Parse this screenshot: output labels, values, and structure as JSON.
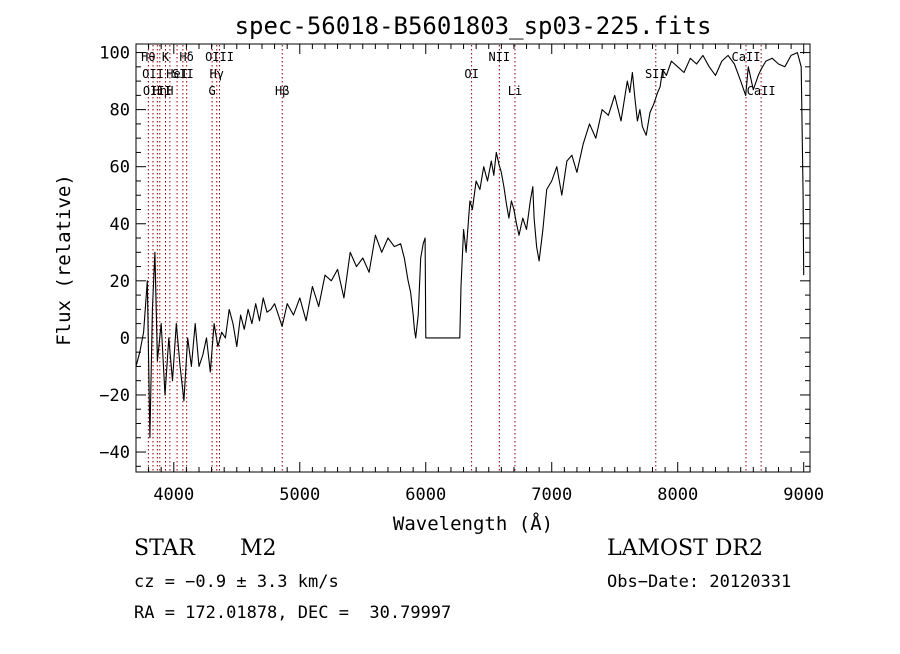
{
  "chart_data": {
    "type": "line",
    "title": "spec-56018-B5601803_sp03-225.fits",
    "xlabel": "Wavelength (Å)",
    "ylabel": "Flux (relative)",
    "xlim": [
      3700,
      9050
    ],
    "ylim": [
      -47,
      103
    ],
    "x_ticks": [
      4000,
      5000,
      6000,
      7000,
      8000,
      9000
    ],
    "y_ticks": [
      -40,
      -20,
      0,
      20,
      40,
      60,
      80,
      100
    ],
    "grid": false,
    "series": [
      {
        "color": "#000000",
        "x": [
          3700,
          3730,
          3760,
          3790,
          3810,
          3830,
          3850,
          3870,
          3900,
          3930,
          3960,
          3990,
          4020,
          4050,
          4080,
          4110,
          4140,
          4170,
          4200,
          4230,
          4260,
          4290,
          4320,
          4350,
          4380,
          4410,
          4440,
          4470,
          4500,
          4530,
          4560,
          4590,
          4620,
          4650,
          4680,
          4710,
          4740,
          4770,
          4800,
          4830,
          4860,
          4900,
          4950,
          5000,
          5050,
          5100,
          5150,
          5200,
          5250,
          5300,
          5350,
          5400,
          5450,
          5500,
          5550,
          5600,
          5650,
          5700,
          5750,
          5800,
          5830,
          5860,
          5880,
          5900,
          5910,
          5920,
          5940,
          5960,
          5980,
          5995,
          6000,
          6010,
          6100,
          6200,
          6270,
          6280,
          6300,
          6320,
          6350,
          6370,
          6400,
          6430,
          6460,
          6490,
          6520,
          6540,
          6560,
          6580,
          6600,
          6620,
          6640,
          6660,
          6680,
          6700,
          6720,
          6740,
          6770,
          6800,
          6830,
          6850,
          6860,
          6880,
          6900,
          6930,
          6960,
          7000,
          7040,
          7080,
          7120,
          7160,
          7200,
          7250,
          7300,
          7350,
          7400,
          7450,
          7500,
          7550,
          7600,
          7620,
          7640,
          7660,
          7680,
          7700,
          7720,
          7750,
          7780,
          7810,
          7840,
          7860,
          7880,
          7910,
          7950,
          8000,
          8050,
          8100,
          8150,
          8200,
          8250,
          8300,
          8350,
          8400,
          8450,
          8500,
          8540,
          8560,
          8600,
          8640,
          8660,
          8700,
          8750,
          8800,
          8850,
          8900,
          8950,
          8980,
          8995,
          9000
        ],
        "y": [
          -10,
          -5,
          2,
          20,
          -35,
          10,
          30,
          -8,
          5,
          -20,
          0,
          -15,
          5,
          -10,
          -22,
          0,
          -10,
          5,
          -10,
          -6,
          0,
          -12,
          5,
          -3,
          2,
          0,
          10,
          5,
          -3,
          8,
          3,
          10,
          5,
          12,
          6,
          14,
          9,
          10,
          12,
          8,
          4,
          12,
          8,
          14,
          6,
          18,
          11,
          22,
          20,
          24,
          14,
          30,
          25,
          28,
          23,
          36,
          30,
          35,
          32,
          33,
          28,
          20,
          16,
          8,
          3,
          0,
          8,
          28,
          33,
          35,
          0,
          0,
          0,
          0,
          0,
          18,
          38,
          30,
          48,
          45,
          55,
          52,
          60,
          55,
          62,
          57,
          65,
          61,
          58,
          53,
          47,
          42,
          48,
          45,
          40,
          36,
          42,
          38,
          48,
          53,
          42,
          32,
          27,
          38,
          52,
          55,
          60,
          50,
          62,
          64,
          58,
          68,
          75,
          70,
          80,
          78,
          85,
          76,
          90,
          86,
          93,
          84,
          76,
          80,
          74,
          71,
          79,
          82,
          86,
          88,
          94,
          92,
          97,
          95,
          93,
          98,
          96,
          99,
          95,
          92,
          97,
          99,
          96,
          90,
          85,
          95,
          87,
          92,
          94,
          97,
          98,
          96,
          95,
          99,
          100,
          95,
          50,
          22
        ]
      }
    ],
    "line_markers": [
      {
        "x": 3798,
        "row": 0,
        "label": "Hθ"
      },
      {
        "x": 3835,
        "row": 1,
        "label": "OII"
      },
      {
        "x": 3869,
        "row": 2,
        "label": "OIII"
      },
      {
        "x": 3889,
        "row": 2,
        "label": "Hη"
      },
      {
        "x": 3934,
        "row": 0,
        "label": "K"
      },
      {
        "x": 3969,
        "row": 2,
        "label": "H"
      },
      {
        "x": 4026,
        "row": 1,
        "label": "HeI"
      },
      {
        "x": 4072,
        "row": 1,
        "label": "SII"
      },
      {
        "x": 4102,
        "row": 0,
        "label": "Hδ"
      },
      {
        "x": 4304,
        "row": 2,
        "label": "G"
      },
      {
        "x": 4341,
        "row": 1,
        "label": "Hγ"
      },
      {
        "x": 4363,
        "row": 0,
        "label": "OIII"
      },
      {
        "x": 4861,
        "row": 2,
        "label": "Hβ"
      },
      {
        "x": 6364,
        "row": 1,
        "label": "OI"
      },
      {
        "x": 6584,
        "row": 0,
        "label": "NII"
      },
      {
        "x": 6708,
        "row": 2,
        "label": "Li"
      },
      {
        "x": 7826,
        "row": 1,
        "label": "SII"
      },
      {
        "x": 8542,
        "row": 0,
        "label": "CaII"
      },
      {
        "x": 8662,
        "row": 2,
        "label": "CaII"
      }
    ]
  },
  "info": {
    "object_class": "STAR",
    "subclass": "M2",
    "survey": "LAMOST DR2",
    "redshift": "cz = −0.9 ± 3.3 km/s",
    "obs_date": "Obs−Date: 20120331",
    "coords": "RA = 172.01878, DEC =  30.79997"
  }
}
